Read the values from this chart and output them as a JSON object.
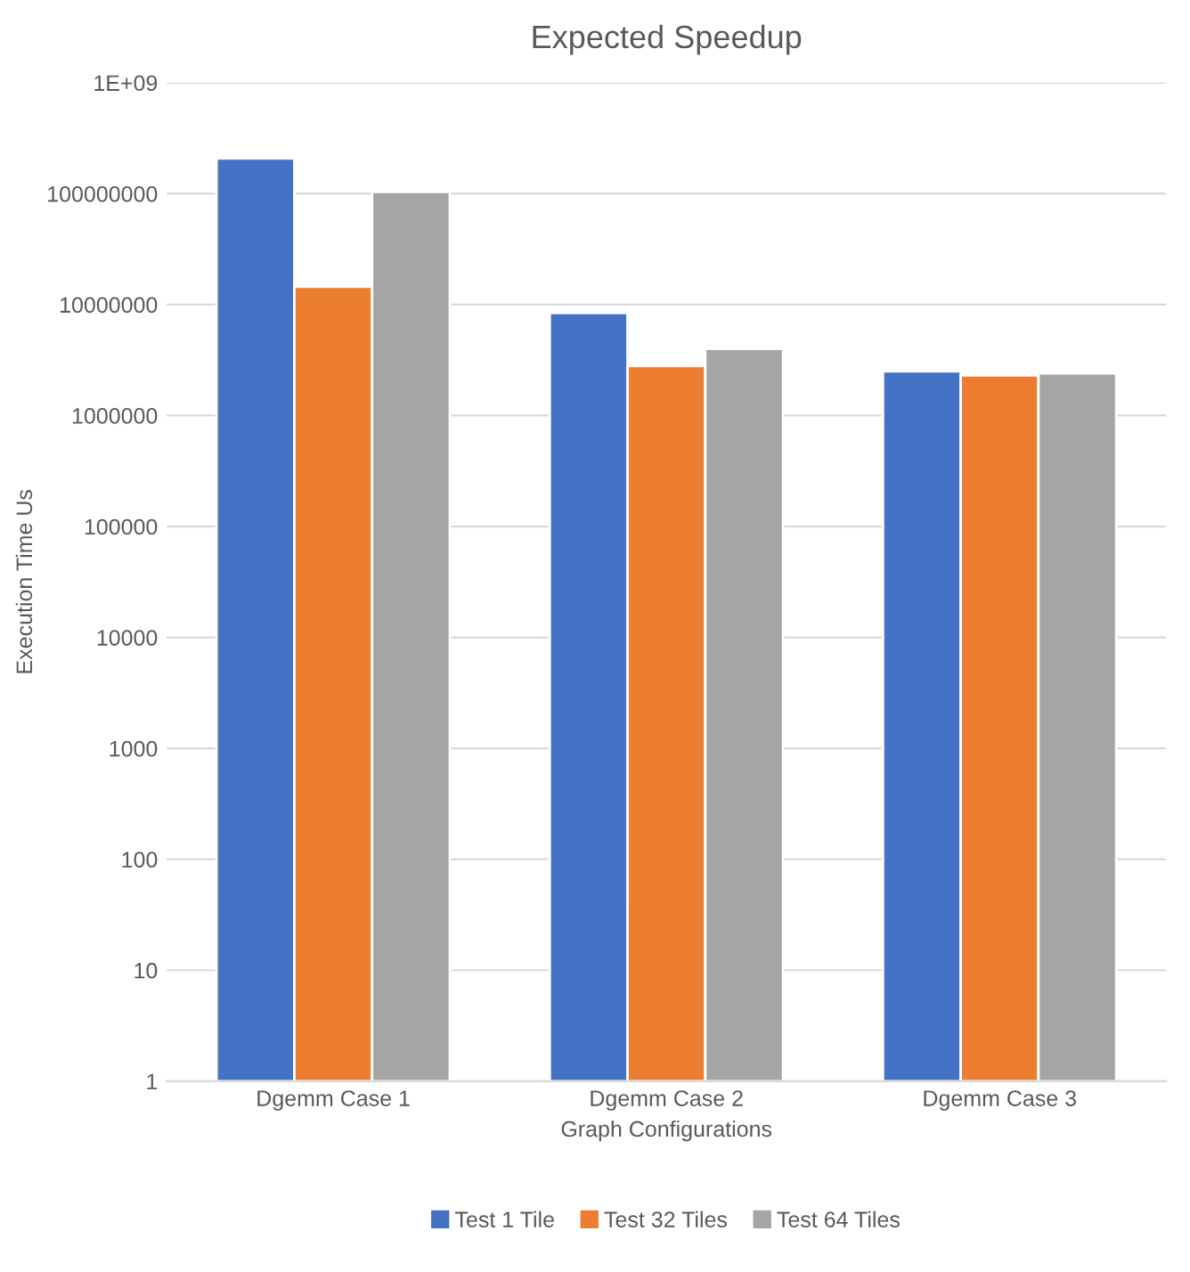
{
  "chart_data": {
    "type": "bar",
    "title": "Expected Speedup",
    "xlabel": "Graph Configurations",
    "ylabel": "Execution Time Us",
    "categories": [
      "Dgemm Case 1",
      "Dgemm Case 2",
      "Dgemm Case 3"
    ],
    "series": [
      {
        "name": "Test 1 Tile",
        "color": "#4472c4",
        "values": [
          208000000,
          8400000,
          2500000
        ]
      },
      {
        "name": "Test 32 Tiles",
        "color": "#ed7d31",
        "values": [
          14500000,
          2800000,
          2300000
        ]
      },
      {
        "name": "Test 64 Tiles",
        "color": "#a5a5a5",
        "values": [
          104000000,
          4000000,
          2400000
        ]
      }
    ],
    "log": "y",
    "ylim": [
      1,
      1000000000
    ],
    "yticks": [
      1,
      10,
      100,
      1000,
      10000,
      100000,
      1000000,
      10000000,
      100000000,
      {
        "value": 1000000000,
        "label": "1E+09"
      }
    ],
    "grid": "y",
    "legend": "bottom"
  }
}
